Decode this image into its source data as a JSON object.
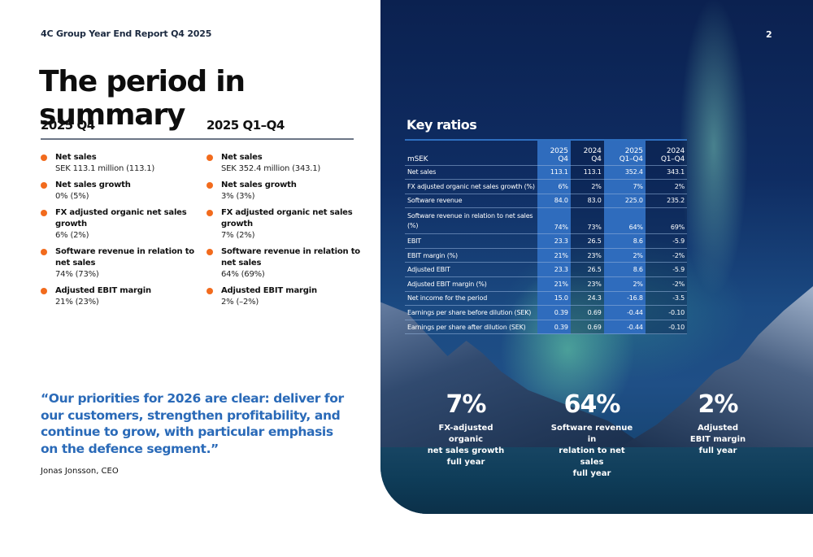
{
  "header": {
    "report_title": "4C Group Year End Report Q4 2025",
    "page_number": "2"
  },
  "page_title": "The period in summary",
  "columns": [
    {
      "heading": "2025 Q4",
      "items": [
        {
          "label": "Net sales",
          "value": "SEK 113.1 million (113.1)"
        },
        {
          "label": "Net sales growth",
          "value": "0% (5%)"
        },
        {
          "label": "FX adjusted organic net sales growth",
          "value": "6% (2%)"
        },
        {
          "label": "Software revenue in relation to net sales",
          "value": "74% (73%)"
        },
        {
          "label": "Adjusted EBIT margin",
          "value": "21% (23%)"
        }
      ]
    },
    {
      "heading": "2025 Q1–Q4",
      "items": [
        {
          "label": "Net sales",
          "value": "SEK 352.4 million (343.1)"
        },
        {
          "label": "Net sales growth",
          "value": "3% (3%)"
        },
        {
          "label": "FX adjusted organic net sales growth",
          "value": "7% (2%)"
        },
        {
          "label": "Software revenue in relation to net sales",
          "value": "64% (69%)"
        },
        {
          "label": "Adjusted EBIT margin",
          "value": "2% (–2%)"
        }
      ]
    }
  ],
  "quote": {
    "text": "“Our priorities for 2026 are clear: deliver for our customers, strengthen profitability, and continue to grow, with particular emphasis on the defence segment.”",
    "author": "Jonas Jonsson, CEO"
  },
  "key_ratios": {
    "title": "Key ratios",
    "unit_label": "mSEK",
    "columns": [
      {
        "year": "2025",
        "period": "Q4"
      },
      {
        "year": "2024",
        "period": "Q4"
      },
      {
        "year": "2025",
        "period": "Q1–Q4"
      },
      {
        "year": "2024",
        "period": "Q1–Q4"
      }
    ],
    "rows": [
      {
        "name": "Net sales",
        "values": [
          "113.1",
          "113.1",
          "352.4",
          "343.1"
        ]
      },
      {
        "name": "FX adjusted organic net sales growth (%)",
        "values": [
          "6%",
          "2%",
          "7%",
          "2%"
        ]
      },
      {
        "name": "Software revenue",
        "values": [
          "84.0",
          "83.0",
          "225.0",
          "235.2"
        ]
      },
      {
        "name": "Software revenue in relation to net sales (%)",
        "values": [
          "74%",
          "73%",
          "64%",
          "69%"
        ]
      },
      {
        "name": "EBIT",
        "values": [
          "23.3",
          "26.5",
          "8.6",
          "-5.9"
        ]
      },
      {
        "name": "EBIT margin (%)",
        "values": [
          "21%",
          "23%",
          "2%",
          "-2%"
        ]
      },
      {
        "name": "Adjusted EBIT",
        "values": [
          "23.3",
          "26.5",
          "8.6",
          "-5.9"
        ]
      },
      {
        "name": "Adjusted EBIT margin (%)",
        "values": [
          "21%",
          "23%",
          "2%",
          "-2%"
        ]
      },
      {
        "name": "Net income for the period",
        "values": [
          "15.0",
          "24.3",
          "-16.8",
          "-3.5"
        ]
      },
      {
        "name": "Earnings per share before dilution (SEK)",
        "values": [
          "0.39",
          "0.69",
          "-0.44",
          "-0.10"
        ]
      },
      {
        "name": "Earnings per share after dilution (SEK)",
        "values": [
          "0.39",
          "0.69",
          "-0.44",
          "-0.10"
        ]
      }
    ]
  },
  "highlights": [
    {
      "value": "7%",
      "line1": "FX-adjusted organic",
      "line2": "net sales growth",
      "line3": "full year"
    },
    {
      "value": "64%",
      "line1": "Software revenue in",
      "line2": "relation to net sales",
      "line3": "full year"
    },
    {
      "value": "2%",
      "line1": "Adjusted",
      "line2": "EBIT margin",
      "line3": "full year"
    }
  ],
  "colors": {
    "bullet": "#f26b1d",
    "quote": "#2a6ab8",
    "table_highlight": "#2f6cbd",
    "background_dark": "#0f2d63"
  }
}
